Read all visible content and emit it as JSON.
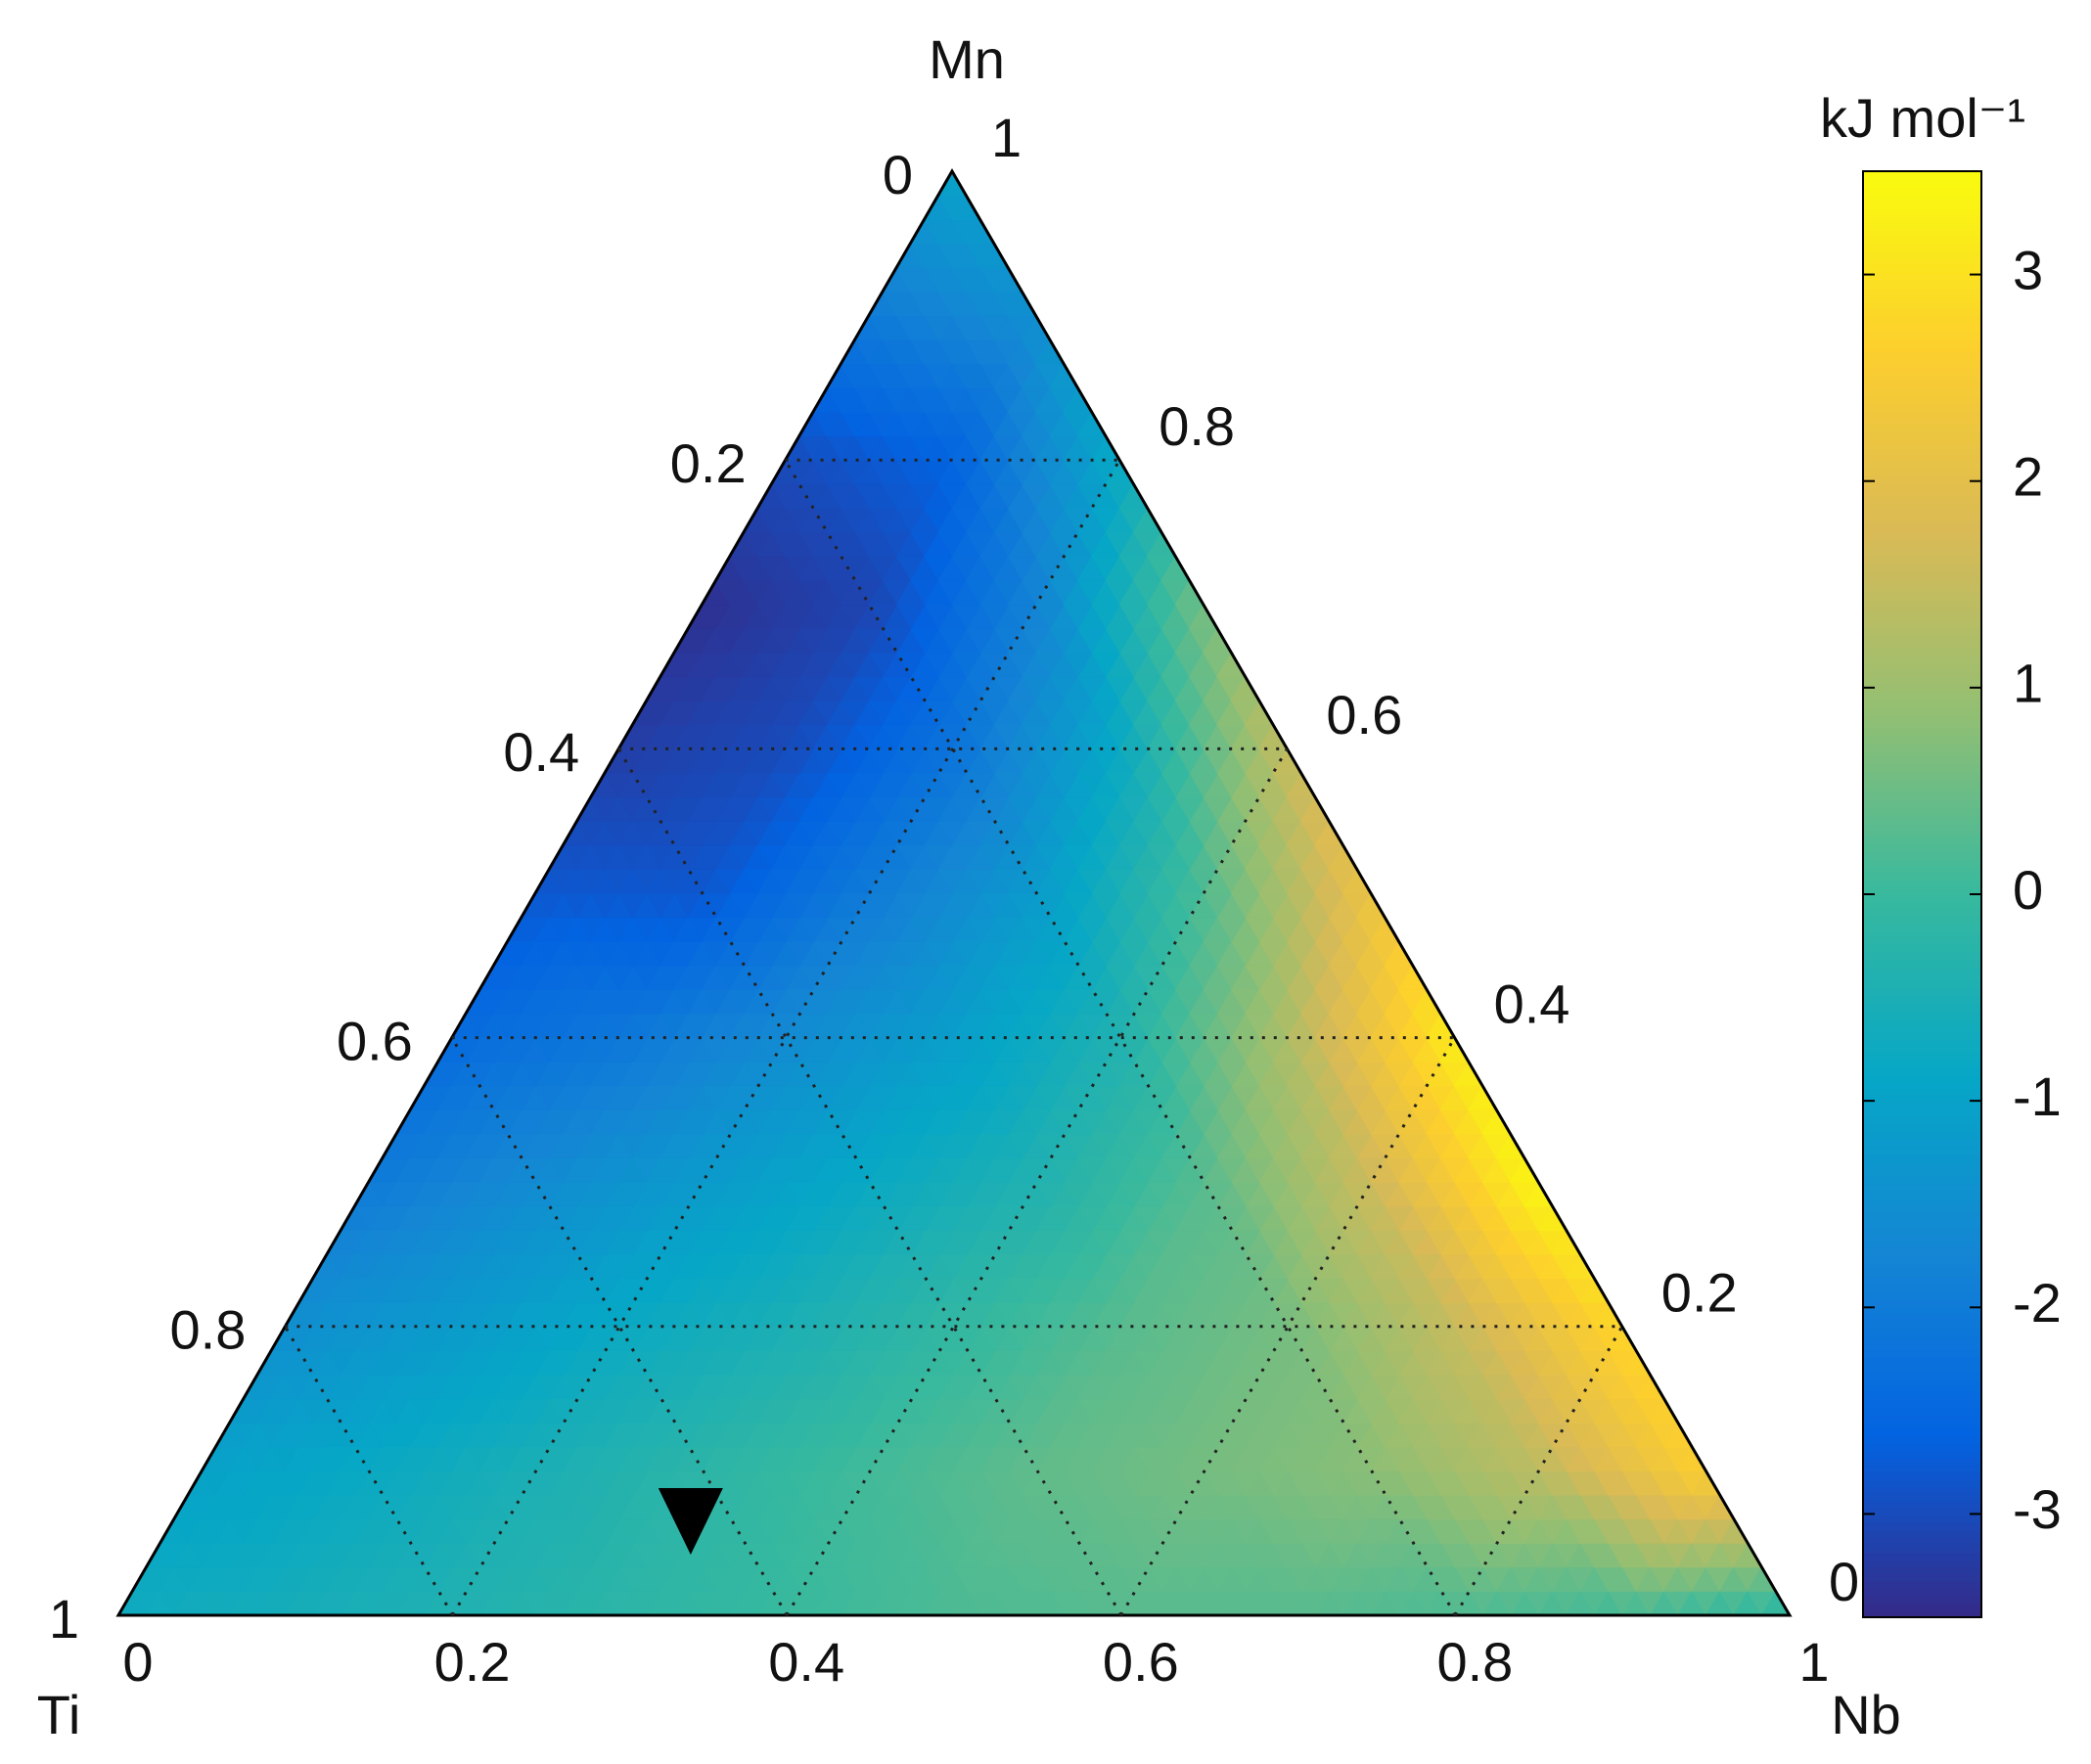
{
  "chart_data": {
    "type": "ternary",
    "axes": {
      "bottom": "Nb",
      "left": "Ti",
      "top": "Mn"
    },
    "colorbar_label": "kJ mol⁻¹",
    "clim": [
      -3.5,
      3.5
    ],
    "cticks": [
      -3,
      -2,
      -1,
      0,
      1,
      2,
      3
    ],
    "colormap": [
      "#352a87",
      "#0363e1",
      "#1485d4",
      "#06a7c6",
      "#38b99e",
      "#92bf73",
      "#d9ba56",
      "#fcce2e",
      "#f9fb0e"
    ],
    "nb_ticks": [
      0,
      0.2,
      0.4,
      0.6,
      0.8,
      1
    ],
    "ti_ticks": [
      0,
      0.2,
      0.4,
      0.6,
      0.8,
      1
    ],
    "mn_ticks": [
      1,
      0.8,
      0.6,
      0.4,
      0.2,
      0
    ],
    "grid": true,
    "field": {
      "nb": [
        0,
        0.1,
        0.2,
        0.3,
        0.4,
        0.5,
        0.6,
        0.7,
        0.8,
        0.9,
        1,
        0,
        0.1,
        0.2,
        0.3,
        0.4,
        0.5,
        0.6,
        0.7,
        0.8,
        0.9,
        0,
        0.1,
        0.2,
        0.3,
        0.4,
        0.5,
        0.6,
        0.7,
        0.8,
        0,
        0.1,
        0.2,
        0.3,
        0.4,
        0.5,
        0.6,
        0.7,
        0,
        0.1,
        0.2,
        0.3,
        0.4,
        0.5,
        0.6,
        0,
        0.1,
        0.2,
        0.3,
        0.4,
        0.5,
        0,
        0.1,
        0.2,
        0.3,
        0.4,
        0,
        0.1,
        0.2,
        0.3,
        0,
        0.1,
        0.2,
        0,
        0.1,
        0
      ],
      "mn": [
        0,
        0,
        0,
        0,
        0,
        0,
        0,
        0,
        0,
        0,
        0,
        0.1,
        0.1,
        0.1,
        0.1,
        0.1,
        0.1,
        0.1,
        0.1,
        0.1,
        0.1,
        0.2,
        0.2,
        0.2,
        0.2,
        0.2,
        0.2,
        0.2,
        0.2,
        0.2,
        0.3,
        0.3,
        0.3,
        0.3,
        0.3,
        0.3,
        0.3,
        0.3,
        0.4,
        0.4,
        0.4,
        0.4,
        0.4,
        0.4,
        0.4,
        0.5,
        0.5,
        0.5,
        0.5,
        0.5,
        0.5,
        0.6,
        0.6,
        0.6,
        0.6,
        0.6,
        0.7,
        0.7,
        0.7,
        0.7,
        0.8,
        0.8,
        0.8,
        0.9,
        0.9,
        1
      ],
      "values": [
        -0.7,
        -0.6,
        -0.4,
        -0.2,
        0,
        0.2,
        0.3,
        0.3,
        0.2,
        0.1,
        -0.2,
        -1.0,
        -0.8,
        -0.5,
        -0.2,
        0.1,
        0.4,
        0.6,
        0.8,
        1.4,
        2.6,
        -1.5,
        -1.2,
        -0.8,
        -0.5,
        -0.1,
        0.3,
        0.6,
        1.5,
        2.8,
        -2.0,
        -1.6,
        -1.2,
        -0.8,
        -0.4,
        0.3,
        1.6,
        3.4,
        -2.4,
        -2.1,
        -1.6,
        -1.1,
        -0.4,
        1.2,
        3.2,
        -2.8,
        -2.8,
        -2.0,
        -1.2,
        0.2,
        2.2,
        -3.2,
        -3.0,
        -2.2,
        -0.8,
        1.5,
        -3.4,
        -3.1,
        -1.8,
        0.6,
        -3.0,
        -2.6,
        -0.8,
        -2.0,
        -1.5,
        -1.0
      ]
    },
    "marker": {
      "nb": 0.31,
      "mn": 0.065,
      "color": "#000000"
    }
  }
}
